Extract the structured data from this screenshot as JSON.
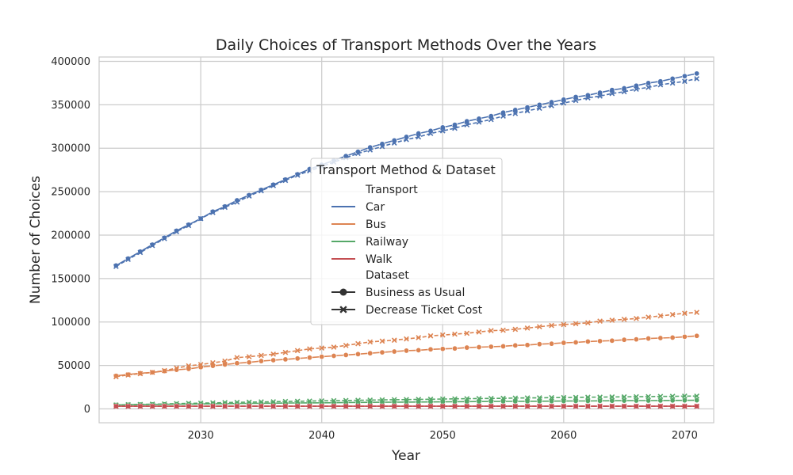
{
  "chart_data": {
    "type": "line",
    "title": "Daily Choices of Transport Methods Over the Years",
    "xlabel": "Year",
    "ylabel": "Number of Choices",
    "xlim": [
      2021.6,
      2072.4
    ],
    "ylim": [
      -16000,
      405000
    ],
    "xticks": [
      2030,
      2040,
      2050,
      2060,
      2070
    ],
    "yticks": [
      0,
      50000,
      100000,
      150000,
      200000,
      250000,
      300000,
      350000,
      400000
    ],
    "grid": true,
    "legend": {
      "title": "Transport Method & Dataset",
      "position": "center",
      "transport_header": "Transport",
      "dataset_header": "Dataset",
      "transport_items": [
        "Car",
        "Bus",
        "Railway",
        "Walk"
      ],
      "dataset_items": [
        "Business as Usual",
        "Decrease Ticket Cost"
      ]
    },
    "colors": {
      "Car": "#4c72b0",
      "Bus": "#dd8452",
      "Railway": "#55a868",
      "Walk": "#c44e52",
      "grid": "#cccccc",
      "legend_marker": "#333333"
    },
    "x": [
      2023,
      2024,
      2025,
      2026,
      2027,
      2028,
      2029,
      2030,
      2031,
      2032,
      2033,
      2034,
      2035,
      2036,
      2037,
      2038,
      2039,
      2040,
      2041,
      2042,
      2043,
      2044,
      2045,
      2046,
      2047,
      2048,
      2049,
      2050,
      2051,
      2052,
      2053,
      2054,
      2055,
      2056,
      2057,
      2058,
      2059,
      2060,
      2061,
      2062,
      2063,
      2064,
      2065,
      2066,
      2067,
      2068,
      2069,
      2070,
      2071
    ],
    "series": [
      {
        "name": "Car",
        "dataset": "Business as Usual",
        "marker": "circle",
        "values": [
          165000,
          173000,
          181000,
          189000,
          197000,
          205000,
          212000,
          219000,
          227000,
          233000,
          240000,
          246000,
          252000,
          258000,
          264000,
          270000,
          276000,
          281000,
          286000,
          291000,
          296000,
          301000,
          305000,
          309000,
          313000,
          317000,
          320000,
          324000,
          327000,
          331000,
          334000,
          337000,
          341000,
          344000,
          347000,
          350000,
          353000,
          356000,
          359000,
          361000,
          364000,
          367000,
          369000,
          372000,
          375000,
          377000,
          380000,
          383000,
          386000
        ]
      },
      {
        "name": "Car",
        "dataset": "Decrease Ticket Cost",
        "marker": "x",
        "values": [
          164000,
          172000,
          180000,
          188000,
          196000,
          204000,
          211000,
          219000,
          226000,
          232000,
          238000,
          245000,
          251000,
          257000,
          263000,
          269000,
          274000,
          279000,
          284000,
          289000,
          294000,
          298000,
          302000,
          306000,
          310000,
          313000,
          317000,
          320000,
          323000,
          327000,
          330000,
          333000,
          337000,
          340000,
          343000,
          346000,
          349000,
          352000,
          355000,
          358000,
          360000,
          363000,
          365000,
          368000,
          370000,
          373000,
          375000,
          377000,
          380000
        ]
      },
      {
        "name": "Bus",
        "dataset": "Business as Usual",
        "marker": "circle",
        "values": [
          38000,
          39500,
          41000,
          42000,
          43500,
          45000,
          46000,
          48000,
          49500,
          51000,
          52500,
          53500,
          55000,
          56000,
          57000,
          58000,
          59000,
          60000,
          61000,
          62000,
          63000,
          64000,
          65000,
          66000,
          67000,
          67500,
          68500,
          69000,
          69500,
          70500,
          71000,
          71500,
          72000,
          73000,
          73500,
          74500,
          75000,
          76000,
          76500,
          77500,
          78000,
          78500,
          79500,
          80000,
          81000,
          81500,
          82000,
          83000,
          84000
        ]
      },
      {
        "name": "Bus",
        "dataset": "Decrease Ticket Cost",
        "marker": "x",
        "values": [
          37000,
          39000,
          40500,
          42000,
          44000,
          47000,
          49500,
          51000,
          53000,
          55000,
          59000,
          60000,
          61500,
          63000,
          65000,
          67000,
          69000,
          70000,
          71000,
          73000,
          75000,
          77000,
          78000,
          79000,
          80500,
          82000,
          84000,
          85000,
          86000,
          87000,
          88500,
          90000,
          90500,
          91500,
          93000,
          94500,
          96000,
          97000,
          98000,
          99000,
          101000,
          102000,
          103000,
          104000,
          105500,
          107000,
          108500,
          110000,
          111000
        ]
      },
      {
        "name": "Railway",
        "dataset": "Business as Usual",
        "marker": "circle",
        "values": [
          4500,
          4700,
          4900,
          5000,
          5200,
          5400,
          5500,
          5700,
          5800,
          6000,
          6100,
          6300,
          6400,
          6500,
          6700,
          6800,
          6900,
          7000,
          7100,
          7300,
          7400,
          7500,
          7600,
          7700,
          7800,
          7900,
          8000,
          8100,
          8200,
          8300,
          8400,
          8500,
          8600,
          8600,
          8700,
          8800,
          8900,
          9000,
          9100,
          9100,
          9200,
          9300,
          9400,
          9500,
          9500,
          9600,
          9700,
          9800,
          9900
        ]
      },
      {
        "name": "Railway",
        "dataset": "Decrease Ticket Cost",
        "marker": "x",
        "values": [
          4500,
          4800,
          5100,
          5400,
          5700,
          6000,
          6300,
          6600,
          6900,
          7200,
          7500,
          7700,
          8000,
          8200,
          8500,
          8700,
          9000,
          9200,
          9400,
          9600,
          9900,
          10100,
          10300,
          10500,
          10700,
          10900,
          11100,
          11300,
          11500,
          11700,
          11900,
          12000,
          12200,
          12400,
          12600,
          12700,
          12900,
          13000,
          13200,
          13400,
          13500,
          13700,
          13800,
          14000,
          14100,
          14300,
          14400,
          14600,
          14700
        ]
      },
      {
        "name": "Walk",
        "dataset": "Business as Usual",
        "marker": "circle",
        "values": [
          3000,
          3000,
          3000,
          3000,
          3000,
          3000,
          3000,
          3000,
          3000,
          3000,
          3000,
          3000,
          3000,
          3000,
          3000,
          3000,
          3000,
          3000,
          3000,
          3000,
          3000,
          3000,
          3000,
          3000,
          3000,
          3000,
          3000,
          3000,
          3000,
          3000,
          3000,
          3000,
          3000,
          3000,
          3000,
          3000,
          3000,
          3000,
          3000,
          3000,
          3000,
          3000,
          3000,
          3000,
          3000,
          3000,
          3000,
          3000,
          3000
        ]
      },
      {
        "name": "Walk",
        "dataset": "Decrease Ticket Cost",
        "marker": "x",
        "values": [
          3000,
          3000,
          3000,
          3000,
          3000,
          3000,
          3000,
          3000,
          3000,
          3000,
          3000,
          3000,
          3000,
          3000,
          3000,
          3000,
          3000,
          3000,
          3000,
          3000,
          3000,
          3000,
          3000,
          3000,
          3000,
          3000,
          3000,
          3000,
          3000,
          3000,
          3000,
          3000,
          3000,
          3000,
          3000,
          3000,
          3000,
          3000,
          3000,
          3000,
          3000,
          3000,
          3000,
          3000,
          3000,
          3000,
          3000,
          3000,
          3000
        ]
      }
    ]
  }
}
